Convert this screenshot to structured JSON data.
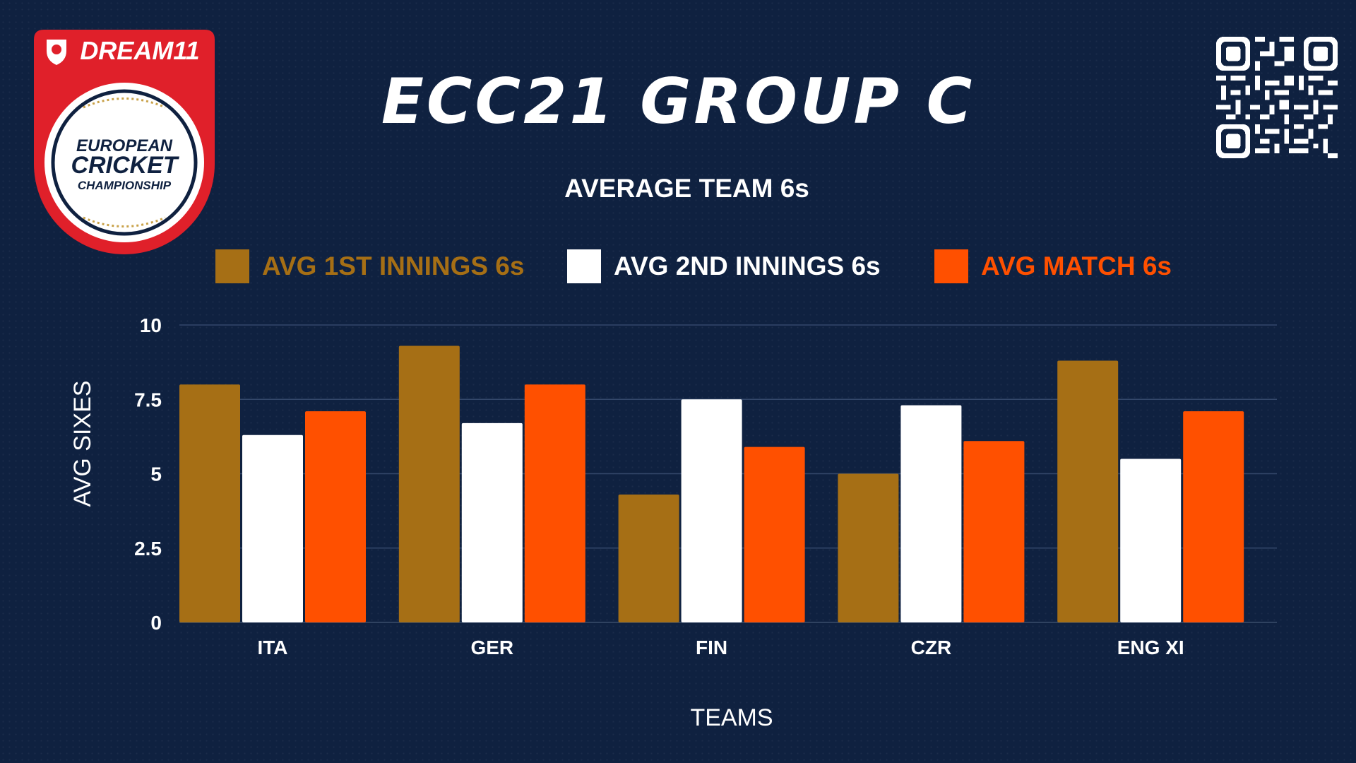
{
  "logo": {
    "brand": "DREAM11",
    "line1": "EUROPEAN",
    "line2": "CRICKET",
    "line3": "CHAMPIONSHIP"
  },
  "title": "ECC21 GROUP C",
  "subtitle": "AVERAGE TEAM 6s",
  "chart_data": {
    "type": "bar",
    "categories": [
      "ITA",
      "GER",
      "FIN",
      "CZR",
      "ENG XI"
    ],
    "series": [
      {
        "name": "AVG 1ST INNINGS 6s",
        "color": "#a66f15",
        "values": [
          8.0,
          9.3,
          4.3,
          5.0,
          8.8
        ]
      },
      {
        "name": "AVG 2ND INNINGS 6s",
        "color": "#ffffff",
        "values": [
          6.3,
          6.7,
          7.5,
          7.3,
          5.5
        ]
      },
      {
        "name": "AVG MATCH 6s",
        "color": "#ff5000",
        "values": [
          7.1,
          8.0,
          5.9,
          6.1,
          7.1
        ]
      }
    ],
    "xlabel": "TEAMS",
    "ylabel": "AVG SIXES",
    "ylim": [
      0,
      10
    ],
    "yticks": [
      "0",
      "2.5",
      "5",
      "7.5",
      "10"
    ],
    "grid": true,
    "legend": "top"
  }
}
